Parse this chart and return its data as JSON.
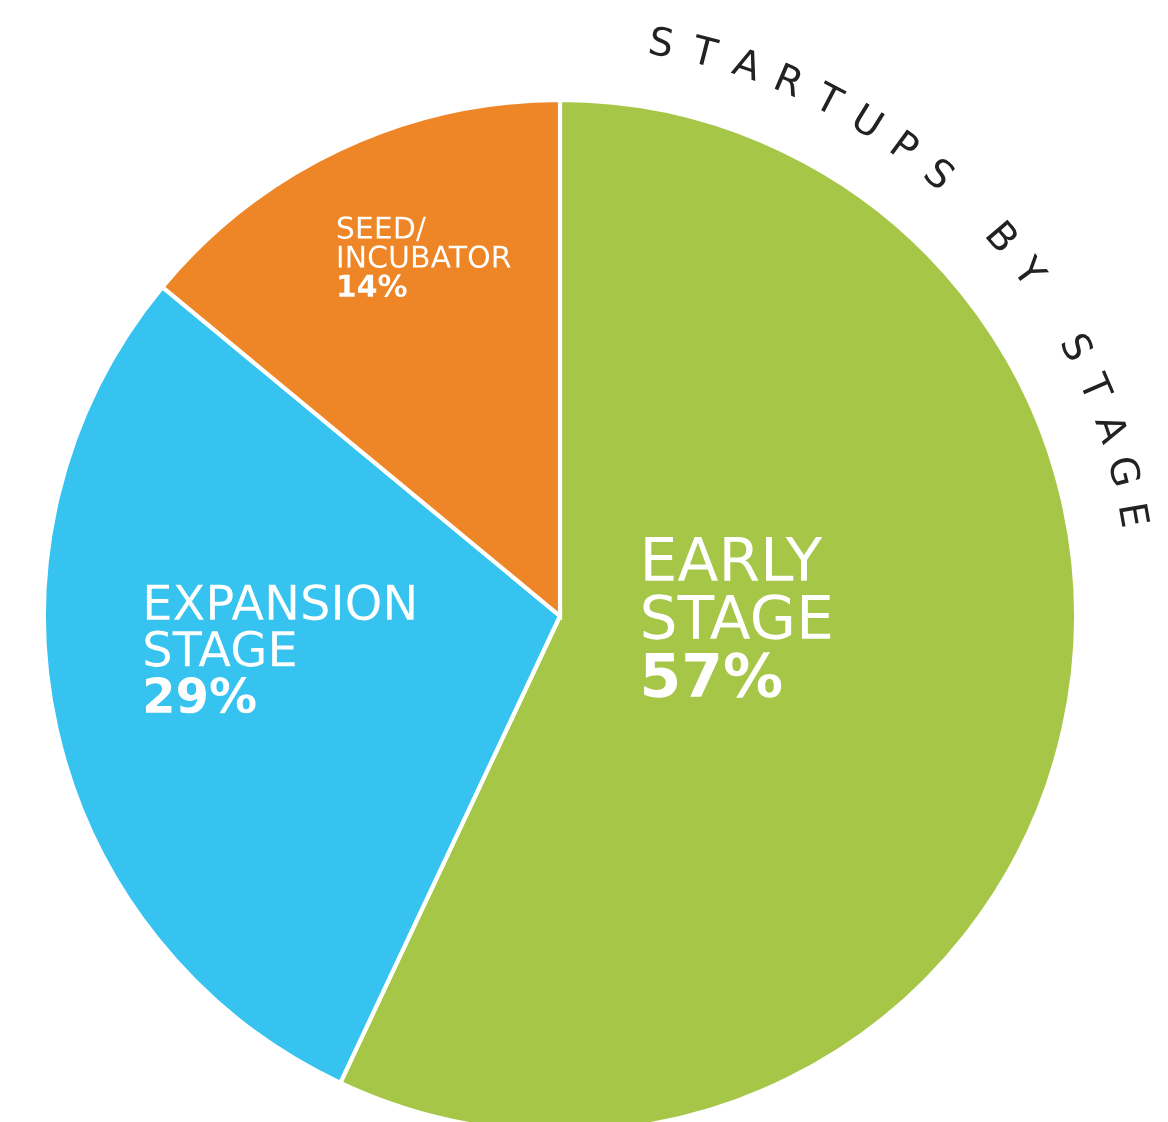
{
  "chart_data": {
    "type": "pie",
    "title": "STARTUPS BY STAGE",
    "categories": [
      "EARLY STAGE",
      "EXPANSION STAGE",
      "SEED/ INCUBATOR"
    ],
    "values": [
      57,
      29,
      14
    ],
    "value_labels": [
      "57%",
      "29%",
      "14%"
    ],
    "colors": [
      "#a6c648",
      "#36c3ef",
      "#ee8627"
    ],
    "legend": false
  }
}
